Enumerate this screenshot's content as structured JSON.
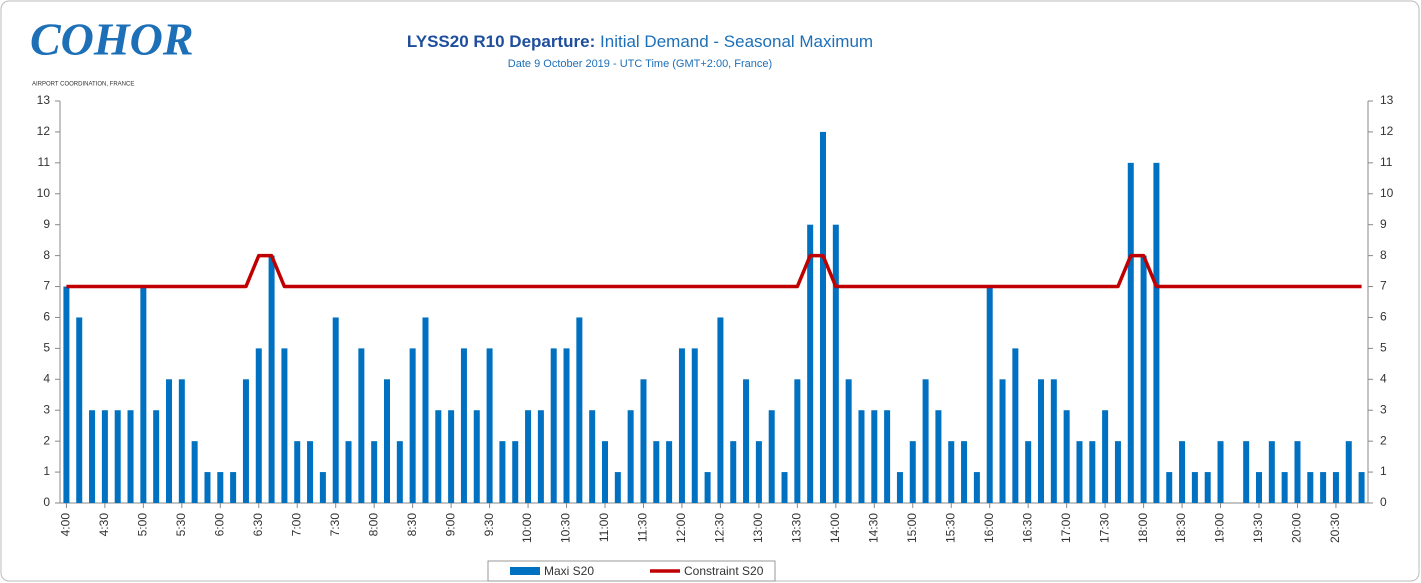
{
  "chart_data": {
    "type": "bar",
    "logo": "COHOR",
    "logo_caption": "AIRPORT COORDINATION, FRANCE",
    "title": [
      "LYSS20 R10 Departure:",
      "Initial Demand - Seasonal Maximum"
    ],
    "subtitle": "Date 9 October 2019 - UTC Time (GMT+2:00, France)",
    "categories": [
      "4:00",
      null,
      null,
      "4:30",
      null,
      null,
      "5:00",
      null,
      null,
      "5:30",
      null,
      null,
      "6:00",
      null,
      null,
      "6:30",
      null,
      null,
      "7:00",
      null,
      null,
      "7:30",
      null,
      null,
      "8:00",
      null,
      null,
      "8:30",
      null,
      null,
      "9:00",
      null,
      null,
      "9:30",
      null,
      null,
      "10:00",
      null,
      null,
      "10:30",
      null,
      null,
      "11:00",
      null,
      null,
      "11:30",
      null,
      null,
      "12:00",
      null,
      null,
      "12:30",
      null,
      null,
      "13:00",
      null,
      null,
      "13:30",
      null,
      null,
      "14:00",
      null,
      null,
      "14:30",
      null,
      null,
      "15:00",
      null,
      null,
      "15:30",
      null,
      null,
      "16:00",
      null,
      null,
      "16:30",
      null,
      null,
      "17:00",
      null,
      null,
      "17:30",
      null,
      null,
      "18:00",
      null,
      null,
      "18:30",
      null,
      null,
      "19:00",
      null,
      null,
      "19:30",
      null,
      null,
      "20:00",
      null,
      null,
      "20:30",
      null,
      null
    ],
    "series": [
      {
        "name": "Maxi S20",
        "kind": "bar",
        "color": "#0070c0",
        "values": [
          7,
          6,
          3,
          3,
          3,
          3,
          7,
          3,
          4,
          4,
          2,
          1,
          1,
          1,
          4,
          5,
          8,
          5,
          2,
          2,
          1,
          6,
          2,
          5,
          2,
          4,
          2,
          5,
          6,
          3,
          3,
          5,
          3,
          5,
          2,
          2,
          3,
          3,
          5,
          5,
          6,
          3,
          2,
          1,
          3,
          4,
          2,
          2,
          5,
          5,
          1,
          6,
          2,
          4,
          2,
          3,
          1,
          4,
          9,
          12,
          9,
          4,
          3,
          3,
          3,
          1,
          2,
          4,
          3,
          2,
          2,
          1,
          7,
          4,
          5,
          2,
          4,
          4,
          3,
          2,
          2,
          3,
          2,
          11,
          8,
          11,
          1,
          2,
          1,
          1,
          2,
          0,
          2,
          1,
          2,
          1,
          2,
          1,
          1,
          1,
          2,
          1
        ]
      },
      {
        "name": "Constraint S20",
        "kind": "line",
        "color": "#c00000",
        "values": [
          7,
          7,
          7,
          7,
          7,
          7,
          7,
          7,
          7,
          7,
          7,
          7,
          7,
          7,
          7,
          8,
          8,
          7,
          7,
          7,
          7,
          7,
          7,
          7,
          7,
          7,
          7,
          7,
          7,
          7,
          7,
          7,
          7,
          7,
          7,
          7,
          7,
          7,
          7,
          7,
          7,
          7,
          7,
          7,
          7,
          7,
          7,
          7,
          7,
          7,
          7,
          7,
          7,
          7,
          7,
          7,
          7,
          7,
          8,
          8,
          7,
          7,
          7,
          7,
          7,
          7,
          7,
          7,
          7,
          7,
          7,
          7,
          7,
          7,
          7,
          7,
          7,
          7,
          7,
          7,
          7,
          7,
          7,
          8,
          8,
          7,
          7,
          7,
          7,
          7,
          7,
          7,
          7,
          7,
          7,
          7,
          7,
          7,
          7,
          7,
          7,
          7
        ]
      }
    ],
    "ylim": [
      0,
      13
    ],
    "yticks": [
      0,
      1,
      2,
      3,
      4,
      5,
      6,
      7,
      8,
      9,
      10,
      11,
      12,
      13
    ],
    "y2lim": [
      0,
      13
    ],
    "y2ticks": [
      0,
      1,
      2,
      3,
      4,
      5,
      6,
      7,
      8,
      9,
      10,
      11,
      12,
      13
    ],
    "legend": "bottom"
  }
}
